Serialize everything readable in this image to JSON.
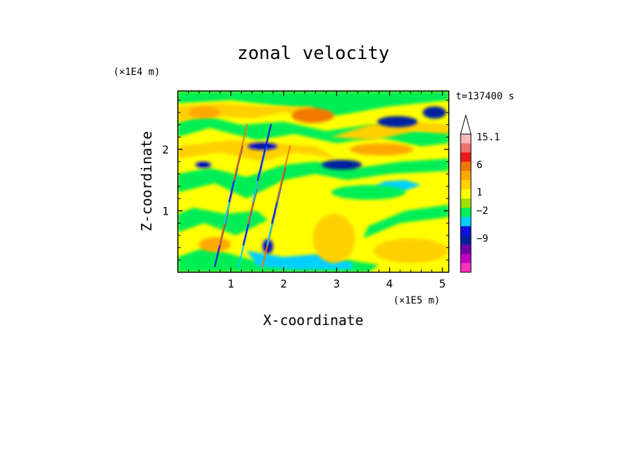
{
  "chart_data": {
    "type": "heatmap",
    "title": "zonal velocity",
    "xlabel": "X-coordinate",
    "ylabel": "Z-coordinate",
    "x_unit": "(×1E5 m)",
    "y_unit": "(×1E4 m)",
    "time_label": "t=137400 s",
    "xlim": [
      0,
      5.12
    ],
    "ylim": [
      0,
      2.95
    ],
    "x_ticks": [
      "1",
      "2",
      "3",
      "4",
      "5"
    ],
    "x_tick_values": [
      1,
      2,
      3,
      4,
      5
    ],
    "y_ticks": [
      "1",
      "2"
    ],
    "y_tick_values": [
      1,
      2
    ],
    "colorbar": {
      "labels": [
        "15.1",
        "6",
        "1",
        "−2",
        "−9"
      ],
      "label_values": [
        15.1,
        6,
        1,
        -2,
        -9
      ],
      "colors_top_to_bottom": [
        "#ffffff",
        "#f7b9b9",
        "#f07070",
        "#ee1818",
        "#f07800",
        "#ffa800",
        "#ffd000",
        "#ffff00",
        "#a0e000",
        "#00ee55",
        "#00d0ff",
        "#1010e0",
        "#0020a0",
        "#7000a8",
        "#c000c0",
        "#ff30c0"
      ]
    },
    "features": [
      {
        "cx": 4.15,
        "cy": 2.45,
        "rx": 0.38,
        "ry": 0.09,
        "value": -9
      },
      {
        "cx": 4.85,
        "cy": 2.6,
        "rx": 0.22,
        "ry": 0.1,
        "value": -9
      },
      {
        "cx": 3.1,
        "cy": 1.75,
        "rx": 0.38,
        "ry": 0.08,
        "value": -9
      },
      {
        "cx": 1.6,
        "cy": 2.05,
        "rx": 0.28,
        "ry": 0.06,
        "value": -5
      },
      {
        "cx": 0.48,
        "cy": 1.75,
        "rx": 0.15,
        "ry": 0.05,
        "value": -5
      },
      {
        "cx": 1.7,
        "cy": 0.42,
        "rx": 0.1,
        "ry": 0.12,
        "value": -5
      },
      {
        "cx": 2.55,
        "cy": 2.55,
        "rx": 0.4,
        "ry": 0.12,
        "value": 6
      },
      {
        "cx": 0.5,
        "cy": 2.6,
        "rx": 0.3,
        "ry": 0.1,
        "value": 4
      },
      {
        "cx": 3.85,
        "cy": 2.0,
        "rx": 0.6,
        "ry": 0.1,
        "value": 3
      },
      {
        "cx": 0.7,
        "cy": 0.45,
        "rx": 0.3,
        "ry": 0.12,
        "value": 4
      },
      {
        "cx": 2.95,
        "cy": 0.55,
        "rx": 0.4,
        "ry": 0.4,
        "value": 2
      },
      {
        "cx": 4.4,
        "cy": 0.35,
        "rx": 0.7,
        "ry": 0.2,
        "value": 2
      },
      {
        "cx": 3.6,
        "cy": 1.3,
        "rx": 0.7,
        "ry": 0.12,
        "value": -1
      }
    ]
  }
}
